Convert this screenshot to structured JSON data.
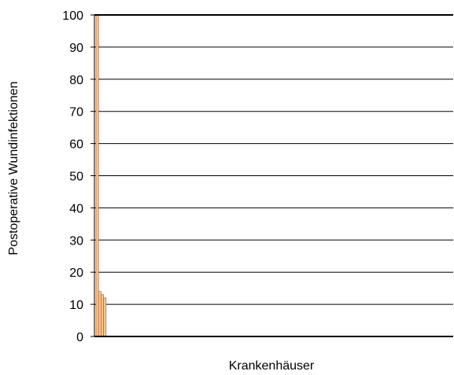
{
  "chart_data": {
    "type": "bar",
    "xlabel": "Krankenhäuser",
    "ylabel": "Postoperative Wundinfektionen",
    "ylim": [
      0,
      100
    ],
    "yticks": [
      0,
      10,
      20,
      30,
      40,
      50,
      60,
      70,
      80,
      90,
      100
    ],
    "grid": true,
    "legend": "none",
    "bar_color": "#FDC68C",
    "bar_edge_color": "#A0522D",
    "values": [
      100,
      14,
      13,
      12
    ]
  }
}
